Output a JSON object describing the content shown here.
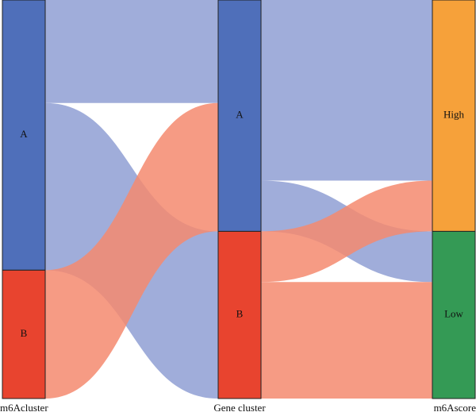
{
  "chart_data": {
    "type": "sankey",
    "columns": [
      "m6Acluster",
      "Gene cluster",
      "m6Ascore"
    ],
    "nodes": [
      {
        "label": "A",
        "column": 0,
        "color": "#4f6fba"
      },
      {
        "label": "B",
        "column": 0,
        "color": "#e8442f"
      },
      {
        "label": "A",
        "column": 1,
        "color": "#4f6fba"
      },
      {
        "label": "B",
        "column": 1,
        "color": "#e8442f"
      },
      {
        "label": "High",
        "column": 2,
        "color": "#f6a13a"
      },
      {
        "label": "Low",
        "column": 2,
        "color": "#349a55"
      }
    ],
    "links": [
      {
        "source": 0,
        "target": 2,
        "value": 130,
        "color": "#8f9fd4"
      },
      {
        "source": 0,
        "target": 3,
        "value": 211,
        "color": "#8f9fd4"
      },
      {
        "source": 1,
        "target": 2,
        "value": 162,
        "color": "#f48a6e"
      },
      {
        "source": 2,
        "target": 4,
        "value": 228,
        "color": "#8f9fd4"
      },
      {
        "source": 2,
        "target": 5,
        "value": 64,
        "color": "#8f9fd4"
      },
      {
        "source": 3,
        "target": 4,
        "value": 64,
        "color": "#f48a6e"
      },
      {
        "source": 3,
        "target": 5,
        "value": 147,
        "color": "#f48a6e"
      }
    ]
  }
}
